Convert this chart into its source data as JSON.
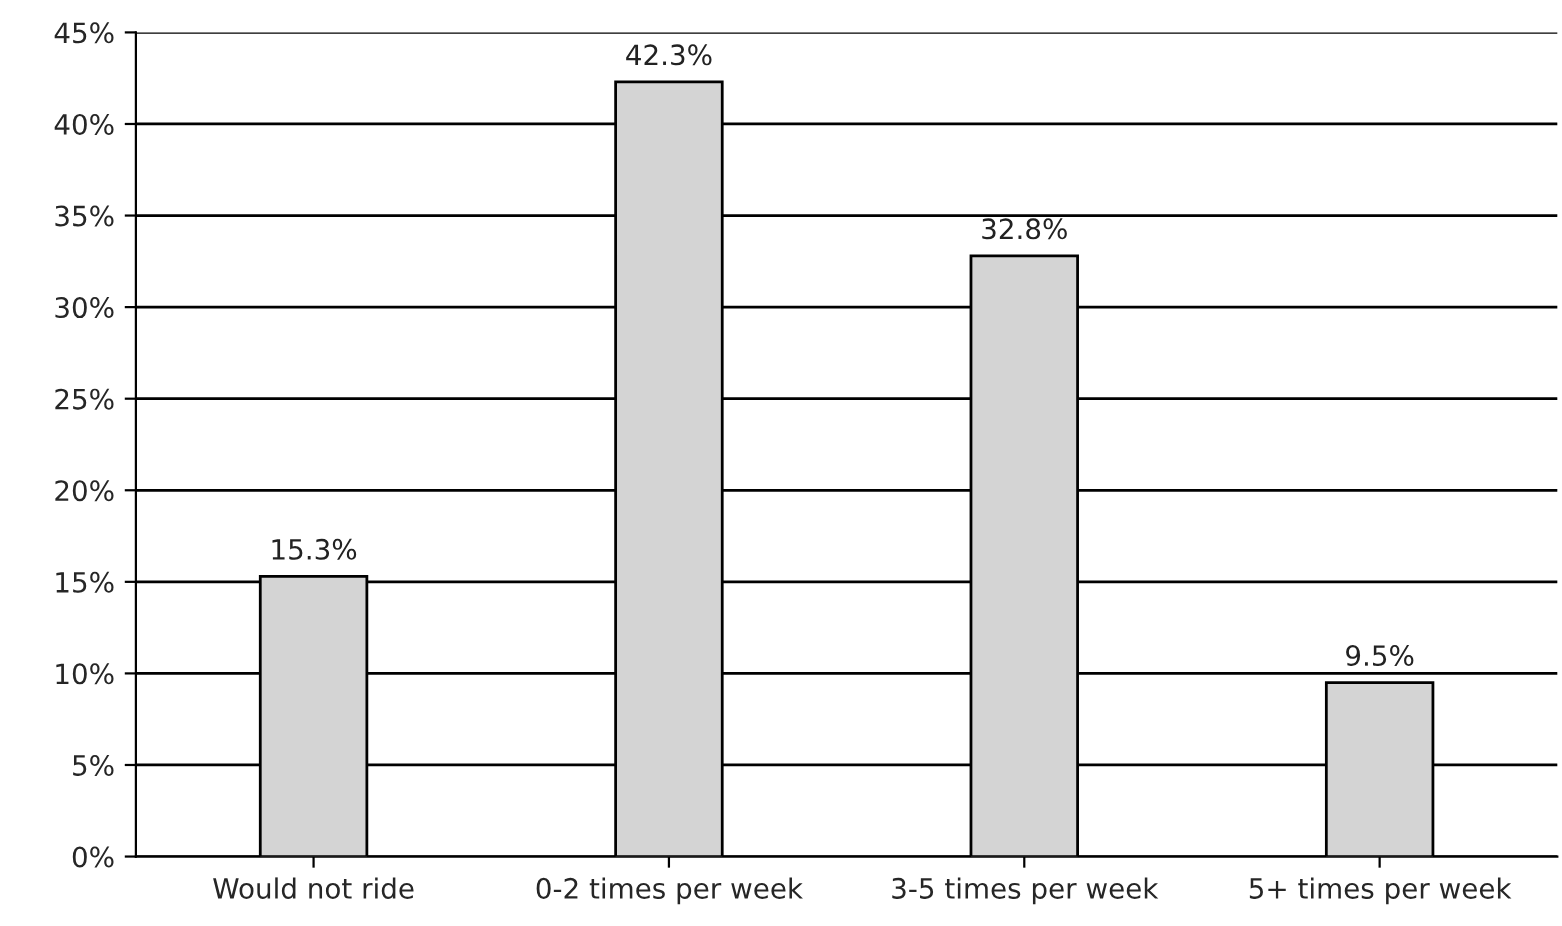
{
  "chart_data": {
    "type": "bar",
    "categories": [
      "Would not ride",
      "0-2 times per week",
      "3-5 times per week",
      "5+ times per week"
    ],
    "values": [
      15.3,
      42.3,
      32.8,
      9.5
    ],
    "color": "#d4d4d4",
    "value_labels": [
      "15.3%",
      "42.3%",
      "32.8%",
      "9.5%"
    ],
    "ylim": [
      0,
      45
    ],
    "yticks": [
      {
        "value": 0,
        "label": "0%"
      },
      {
        "value": 5,
        "label": "5%"
      },
      {
        "value": 10,
        "label": "10%"
      },
      {
        "value": 15,
        "label": "15%"
      },
      {
        "value": 20,
        "label": "20%"
      },
      {
        "value": 25,
        "label": "25%"
      },
      {
        "value": 30,
        "label": "30%"
      },
      {
        "value": 35,
        "label": "35%"
      },
      {
        "value": 40,
        "label": "40%"
      },
      {
        "value": 45,
        "label": "45%"
      }
    ],
    "grid": "y",
    "legend": false
  }
}
